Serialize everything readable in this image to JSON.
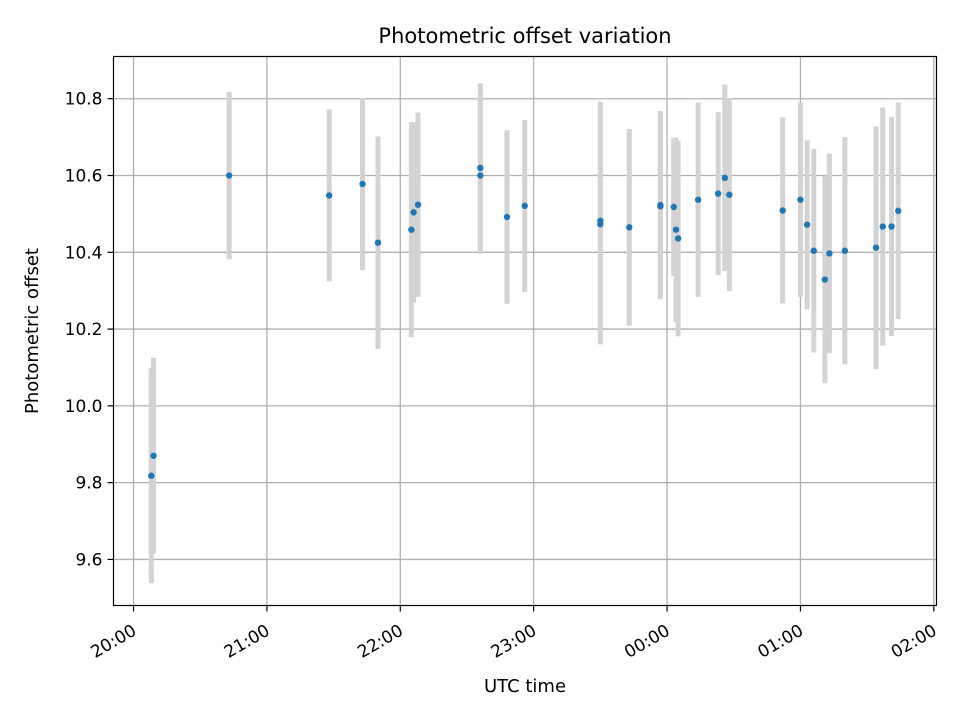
{
  "chart_data": {
    "type": "scatter",
    "title": "Photometric offset variation",
    "xlabel": "UTC time",
    "ylabel": "Photometric offset",
    "x_unit": "hours (UTC, relative to 20:00 on first night; values past 24 cross midnight)",
    "xlim": [
      19.85,
      26.02
    ],
    "ylim": [
      9.48,
      10.91
    ],
    "x_ticks": [
      20,
      21,
      22,
      23,
      24,
      25,
      26
    ],
    "x_tick_labels": [
      "20:00",
      "21:00",
      "22:00",
      "23:00",
      "00:00",
      "01:00",
      "02:00"
    ],
    "y_ticks": [
      9.6,
      9.8,
      10.0,
      10.2,
      10.4,
      10.6,
      10.8
    ],
    "y_tick_labels": [
      "9.6",
      "9.8",
      "10.0",
      "10.2",
      "10.4",
      "10.6",
      "10.8"
    ],
    "grid": true,
    "colors": {
      "point": "#1f77b4",
      "errorbar": "#d3d3d3",
      "grid": "#b0b0b0"
    },
    "series": [
      {
        "points": [
          {
            "x": 20.133,
            "y": 9.818,
            "err": 0.28
          },
          {
            "x": 20.15,
            "y": 9.87,
            "err": 0.255
          },
          {
            "x": 20.717,
            "y": 10.6,
            "err": 0.218
          },
          {
            "x": 21.467,
            "y": 10.548,
            "err": 0.224
          },
          {
            "x": 21.717,
            "y": 10.578,
            "err": 0.224
          },
          {
            "x": 21.833,
            "y": 10.425,
            "err": 0.277
          },
          {
            "x": 22.083,
            "y": 10.459,
            "err": 0.28
          },
          {
            "x": 22.1,
            "y": 10.504,
            "err": 0.235
          },
          {
            "x": 22.133,
            "y": 10.524,
            "err": 0.24
          },
          {
            "x": 22.6,
            "y": 10.6,
            "err": 0.204
          },
          {
            "x": 22.6,
            "y": 10.62,
            "err": 0.22
          },
          {
            "x": 22.8,
            "y": 10.492,
            "err": 0.226
          },
          {
            "x": 22.933,
            "y": 10.521,
            "err": 0.224
          },
          {
            "x": 23.5,
            "y": 10.473,
            "err": 0.313
          },
          {
            "x": 23.5,
            "y": 10.482,
            "err": 0.31
          },
          {
            "x": 23.717,
            "y": 10.465,
            "err": 0.256
          },
          {
            "x": 23.95,
            "y": 10.52,
            "err": 0.24
          },
          {
            "x": 23.95,
            "y": 10.523,
            "err": 0.245
          },
          {
            "x": 24.05,
            "y": 10.518,
            "err": 0.18
          },
          {
            "x": 24.067,
            "y": 10.459,
            "err": 0.24
          },
          {
            "x": 24.083,
            "y": 10.436,
            "err": 0.255
          },
          {
            "x": 24.233,
            "y": 10.537,
            "err": 0.253
          },
          {
            "x": 24.383,
            "y": 10.553,
            "err": 0.212
          },
          {
            "x": 24.433,
            "y": 10.594,
            "err": 0.243
          },
          {
            "x": 24.467,
            "y": 10.55,
            "err": 0.251
          },
          {
            "x": 24.867,
            "y": 10.509,
            "err": 0.242
          },
          {
            "x": 25.0,
            "y": 10.537,
            "err": 0.253
          },
          {
            "x": 25.05,
            "y": 10.472,
            "err": 0.22
          },
          {
            "x": 25.1,
            "y": 10.404,
            "err": 0.265
          },
          {
            "x": 25.183,
            "y": 10.329,
            "err": 0.27
          },
          {
            "x": 25.217,
            "y": 10.397,
            "err": 0.26
          },
          {
            "x": 25.333,
            "y": 10.404,
            "err": 0.296
          },
          {
            "x": 25.567,
            "y": 10.412,
            "err": 0.316
          },
          {
            "x": 25.617,
            "y": 10.467,
            "err": 0.31
          },
          {
            "x": 25.683,
            "y": 10.467,
            "err": 0.285
          },
          {
            "x": 25.733,
            "y": 10.508,
            "err": 0.282
          }
        ]
      }
    ]
  }
}
